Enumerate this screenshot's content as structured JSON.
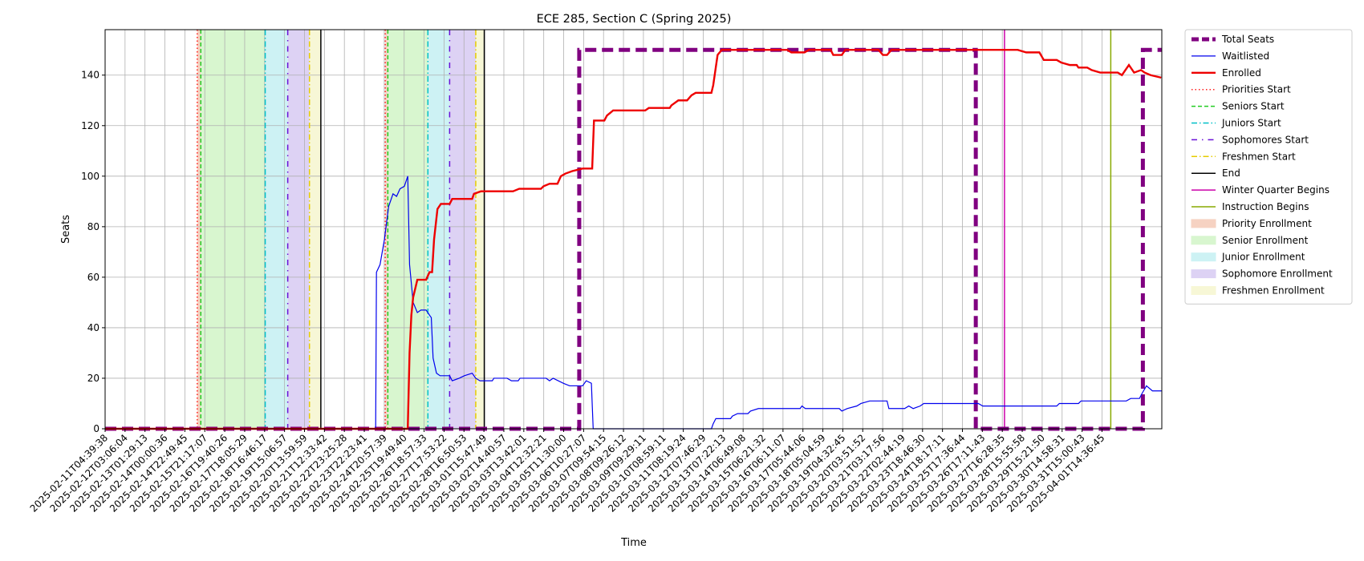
{
  "chart_data": {
    "type": "line",
    "title": "ECE 285, Section C (Spring 2025)",
    "xlabel": "Time",
    "ylabel": "Seats",
    "grid": true,
    "legend": "outside upper right",
    "xlim": [
      0,
      53
    ],
    "ylim": [
      0,
      158
    ],
    "yticks": [
      0,
      20,
      40,
      60,
      80,
      100,
      120,
      140
    ],
    "xticks": [
      {
        "value": 0,
        "label": "2025-02-11T04:39:38"
      },
      {
        "value": 1,
        "label": "2025-02-12T03:06:04"
      },
      {
        "value": 2,
        "label": "2025-02-13T01:29:13"
      },
      {
        "value": 3,
        "label": "2025-02-14T00:00:36"
      },
      {
        "value": 4,
        "label": "2025-02-14T22:49:45"
      },
      {
        "value": 5,
        "label": "2025-02-15T21:17:07"
      },
      {
        "value": 6,
        "label": "2025-02-16T19:40:26"
      },
      {
        "value": 7,
        "label": "2025-02-17T18:05:29"
      },
      {
        "value": 8,
        "label": "2025-02-18T16:46:17"
      },
      {
        "value": 9,
        "label": "2025-02-19T15:06:57"
      },
      {
        "value": 10,
        "label": "2025-02-20T13:59:59"
      },
      {
        "value": 11,
        "label": "2025-02-21T12:33:42"
      },
      {
        "value": 12,
        "label": "2025-02-22T23:25:28"
      },
      {
        "value": 13,
        "label": "2025-02-23T22:23:41"
      },
      {
        "value": 14,
        "label": "2025-02-24T20:57:39"
      },
      {
        "value": 15,
        "label": "2025-02-25T19:49:40"
      },
      {
        "value": 16,
        "label": "2025-02-26T18:57:33"
      },
      {
        "value": 17,
        "label": "2025-02-27T17:53:22"
      },
      {
        "value": 18,
        "label": "2025-02-28T16:50:53"
      },
      {
        "value": 19,
        "label": "2025-03-01T15:47:49"
      },
      {
        "value": 20,
        "label": "2025-03-02T14:40:57"
      },
      {
        "value": 21,
        "label": "2025-03-03T13:42:01"
      },
      {
        "value": 22,
        "label": "2025-03-04T12:32:21"
      },
      {
        "value": 23,
        "label": "2025-03-05T11:30:00"
      },
      {
        "value": 24,
        "label": "2025-03-06T10:27:07"
      },
      {
        "value": 25,
        "label": "2025-03-07T09:54:15"
      },
      {
        "value": 26,
        "label": "2025-03-08T09:26:12"
      },
      {
        "value": 27,
        "label": "2025-03-09T09:29:11"
      },
      {
        "value": 28,
        "label": "2025-03-10T08:59:11"
      },
      {
        "value": 29,
        "label": "2025-03-11T08:19:24"
      },
      {
        "value": 30,
        "label": "2025-03-12T07:46:29"
      },
      {
        "value": 31,
        "label": "2025-03-13T07:22:13"
      },
      {
        "value": 32,
        "label": "2025-03-14T06:49:08"
      },
      {
        "value": 33,
        "label": "2025-03-15T06:21:32"
      },
      {
        "value": 34,
        "label": "2025-03-16T06:11:07"
      },
      {
        "value": 35,
        "label": "2025-03-17T05:44:06"
      },
      {
        "value": 36,
        "label": "2025-03-18T05:04:59"
      },
      {
        "value": 37,
        "label": "2025-03-19T04:32:45"
      },
      {
        "value": 38,
        "label": "2025-03-20T03:51:52"
      },
      {
        "value": 39,
        "label": "2025-03-21T03:17:56"
      },
      {
        "value": 40,
        "label": "2025-03-22T02:44:19"
      },
      {
        "value": 41,
        "label": "2025-03-23T18:46:30"
      },
      {
        "value": 42,
        "label": "2025-03-24T18:17:11"
      },
      {
        "value": 43,
        "label": "2025-03-25T17:36:44"
      },
      {
        "value": 44,
        "label": "2025-03-26T17:11:43"
      },
      {
        "value": 45,
        "label": "2025-03-27T16:28:35"
      },
      {
        "value": 46,
        "label": "2025-03-28T15:55:58"
      },
      {
        "value": 47,
        "label": "2025-03-29T15:21:50"
      },
      {
        "value": 48,
        "label": "2025-03-30T14:58:31"
      },
      {
        "value": 49,
        "label": "2025-03-31T15:00:43"
      },
      {
        "value": 50,
        "label": "2025-04-01T14:36:45"
      }
    ],
    "series": [
      {
        "name": "Total Seats",
        "color": "#800080",
        "style": "dashed",
        "width": 5,
        "x": [
          0,
          23.78,
          23.78,
          43.67,
          43.67,
          52.05,
          52.05,
          53
        ],
        "values": [
          0,
          0,
          150,
          150,
          0,
          0,
          150,
          150
        ]
      },
      {
        "name": "Waitlisted",
        "color": "#0000ee",
        "style": "solid",
        "width": 1.2,
        "x": [
          0,
          13.57,
          13.61,
          13.79,
          14.01,
          14.22,
          14.44,
          14.62,
          14.79,
          15.01,
          15.18,
          15.27,
          15.45,
          15.66,
          15.84,
          16.1,
          16.27,
          16.36,
          16.45,
          16.62,
          16.8,
          17.28,
          17.41,
          17.76,
          18.02,
          18.41,
          18.59,
          18.8,
          19.42,
          19.5,
          20.16,
          20.38,
          20.72,
          20.81,
          22.12,
          22.29,
          22.47,
          22.99,
          23.3,
          23.95,
          24.13,
          24.39,
          24.48,
          30.41,
          30.5,
          30.63,
          31.37,
          31.46,
          31.72,
          32.24,
          32.37,
          32.77,
          34.86,
          34.95,
          35.12,
          36.82,
          36.95,
          37.22,
          37.7,
          37.91,
          38.35,
          39.22,
          39.31,
          40.1,
          40.31,
          40.53,
          40.88,
          41.06,
          43.8,
          44.02,
          47.73,
          47.86,
          48.82,
          48.95,
          51.22,
          51.44,
          51.88,
          52.01,
          52.23,
          52.53,
          53
        ],
        "values": [
          0,
          0,
          62,
          65,
          75,
          88,
          93,
          92,
          95,
          96,
          100,
          65,
          50,
          46,
          47,
          47,
          45,
          44,
          28,
          22,
          21,
          21,
          19,
          20,
          21,
          22,
          20,
          19,
          19,
          20,
          20,
          19,
          19,
          20,
          20,
          19,
          20,
          18,
          17,
          17,
          19,
          18,
          0,
          0,
          2,
          4,
          4,
          5,
          6,
          6,
          7,
          8,
          8,
          9,
          8,
          8,
          7,
          8,
          9,
          10,
          11,
          11,
          8,
          8,
          9,
          8,
          9,
          10,
          10,
          9,
          9,
          10,
          10,
          11,
          11,
          12,
          12,
          14,
          17,
          15,
          15
        ]
      },
      {
        "name": "Enrolled",
        "color": "#ee0000",
        "style": "solid",
        "width": 2.4,
        "x": [
          0,
          15.18,
          15.27,
          15.36,
          15.45,
          15.66,
          16.1,
          16.27,
          16.4,
          16.5,
          16.67,
          16.84,
          17.28,
          17.41,
          18.41,
          18.5,
          18.85,
          20.46,
          20.77,
          21.86,
          21.99,
          22.29,
          22.69,
          22.86,
          23.08,
          23.43,
          23.95,
          24.43,
          24.52,
          25.04,
          25.17,
          25.48,
          27.09,
          27.27,
          28.32,
          28.4,
          28.75,
          29.19,
          29.41,
          29.62,
          30.41,
          30.5,
          30.72,
          30.93,
          34.21,
          34.42,
          35.08,
          35.3,
          36.39,
          36.52,
          36.95,
          37.13,
          38.79,
          39.01,
          39.22,
          39.44,
          45.77,
          46.2,
          46.86,
          47.08,
          47.73,
          47.95,
          48.39,
          48.73,
          48.82,
          49.26,
          49.48,
          49.91,
          50.79,
          51.0,
          51.35,
          51.61,
          51.96,
          52.14,
          52.44,
          52.97
        ],
        "values": [
          0,
          0,
          30,
          45,
          52,
          59,
          59,
          62,
          62,
          75,
          87,
          89,
          89,
          91,
          91,
          93,
          94,
          94,
          95,
          95,
          96,
          97,
          97,
          100,
          101,
          102,
          103,
          103,
          122,
          122,
          124,
          126,
          126,
          127,
          127,
          128,
          130,
          130,
          132,
          133,
          133,
          136,
          148,
          150,
          150,
          149,
          149,
          150,
          150,
          148,
          148,
          150,
          150,
          148,
          148,
          150,
          150,
          149,
          149,
          146,
          146,
          145,
          144,
          144,
          143,
          143,
          142,
          141,
          141,
          140,
          144,
          141,
          142,
          141,
          140,
          139
        ]
      }
    ],
    "vlines": [
      {
        "name": "Priorities Start",
        "color": "#ff2020",
        "style": "dotted",
        "x": [
          4.62,
          14.05
        ]
      },
      {
        "name": "Seniors Start",
        "color": "#22cc22",
        "style": "dashed",
        "x": [
          4.8,
          14.18
        ]
      },
      {
        "name": "Juniors Start",
        "color": "#00c0c8",
        "style": "dashdot",
        "x": [
          8.03,
          16.19
        ]
      },
      {
        "name": "Sophomores Start",
        "color": "#6a10d8",
        "style": "loosedashdot",
        "x": [
          9.16,
          17.28
        ]
      },
      {
        "name": "Freshmen Start",
        "color": "#e6cc00",
        "style": "dashdot",
        "x": [
          10.25,
          18.59
        ]
      },
      {
        "name": "End",
        "color": "#000000",
        "style": "solid",
        "x": [
          10.82,
          19.02
        ]
      },
      {
        "name": "Winter Quarter Begins",
        "color": "#cc00aa",
        "style": "solid",
        "x": [
          45.11
        ]
      },
      {
        "name": "Instruction Begins",
        "color": "#88aa00",
        "style": "solid",
        "x": [
          50.44
        ]
      }
    ],
    "spans": [
      {
        "name": "Priority Enrollment",
        "color": "#f6d2c2",
        "ranges": [
          [
            4.62,
            4.8
          ],
          [
            14.05,
            14.18
          ]
        ]
      },
      {
        "name": "Senior Enrollment",
        "color": "#d8f6cf",
        "ranges": [
          [
            4.8,
            8.03
          ],
          [
            14.18,
            16.19
          ]
        ]
      },
      {
        "name": "Junior Enrollment",
        "color": "#cdf2f4",
        "ranges": [
          [
            8.03,
            9.16
          ],
          [
            16.19,
            17.28
          ]
        ]
      },
      {
        "name": "Sophomore Enrollment",
        "color": "#ddd2f4",
        "ranges": [
          [
            9.16,
            10.25
          ],
          [
            17.28,
            18.59
          ]
        ]
      },
      {
        "name": "Freshmen Enrollment",
        "color": "#f7f7d6",
        "ranges": [
          [
            10.25,
            10.82
          ],
          [
            18.59,
            19.02
          ]
        ]
      }
    ]
  }
}
